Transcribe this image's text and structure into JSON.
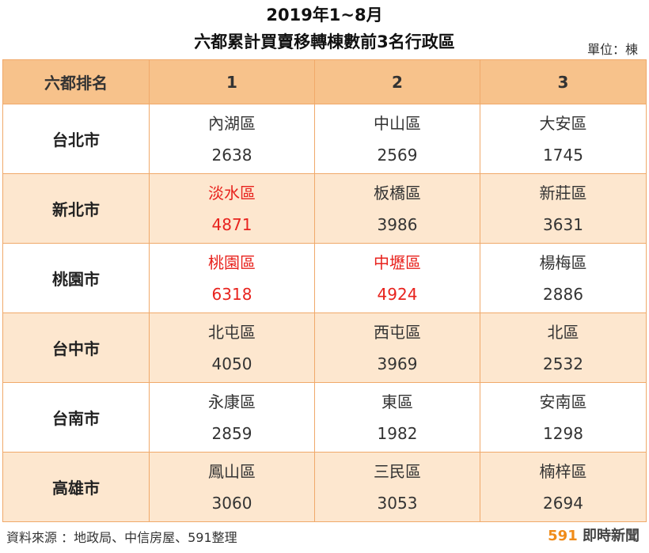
{
  "title": {
    "line1": "2019年1~8月",
    "line2": "六都累計買賣移轉棟數前3名行政區"
  },
  "unit_label": "單位：棟",
  "colors": {
    "header_bg": "#f7c28b",
    "shaded_row_bg": "#fde7cf",
    "border": "#f0a96a",
    "highlight": "#e8231e",
    "normal_text": "#333333",
    "brand_accent": "#f08c1a"
  },
  "chart_data": {
    "type": "table",
    "columns": [
      "六都排名",
      "1",
      "2",
      "3"
    ],
    "rows": [
      {
        "city": "台北市",
        "cells": [
          {
            "district": "內湖區",
            "value": "2638",
            "highlight": false
          },
          {
            "district": "中山區",
            "value": "2569",
            "highlight": false
          },
          {
            "district": "大安區",
            "value": "1745",
            "highlight": false
          }
        ]
      },
      {
        "city": "新北市",
        "cells": [
          {
            "district": "淡水區",
            "value": "4871",
            "highlight": true
          },
          {
            "district": "板橋區",
            "value": "3986",
            "highlight": false
          },
          {
            "district": "新莊區",
            "value": "3631",
            "highlight": false
          }
        ]
      },
      {
        "city": "桃園市",
        "cells": [
          {
            "district": "桃園區",
            "value": "6318",
            "highlight": true
          },
          {
            "district": "中壢區",
            "value": "4924",
            "highlight": true
          },
          {
            "district": "楊梅區",
            "value": "2886",
            "highlight": false
          }
        ]
      },
      {
        "city": "台中市",
        "cells": [
          {
            "district": "北屯區",
            "value": "4050",
            "highlight": false
          },
          {
            "district": "西屯區",
            "value": "3969",
            "highlight": false
          },
          {
            "district": "北區",
            "value": "2532",
            "highlight": false
          }
        ]
      },
      {
        "city": "台南市",
        "cells": [
          {
            "district": "永康區",
            "value": "2859",
            "highlight": false
          },
          {
            "district": "東區",
            "value": "1982",
            "highlight": false
          },
          {
            "district": "安南區",
            "value": "1298",
            "highlight": false
          }
        ]
      },
      {
        "city": "高雄市",
        "cells": [
          {
            "district": "鳳山區",
            "value": "3060",
            "highlight": false
          },
          {
            "district": "三民區",
            "value": "3053",
            "highlight": false
          },
          {
            "district": "楠梓區",
            "value": "2694",
            "highlight": false
          }
        ]
      }
    ]
  },
  "footer": {
    "source": "資料來源 ：地政局、中信房屋、591整理",
    "brand_number": "591",
    "brand_text": "即時新聞"
  }
}
